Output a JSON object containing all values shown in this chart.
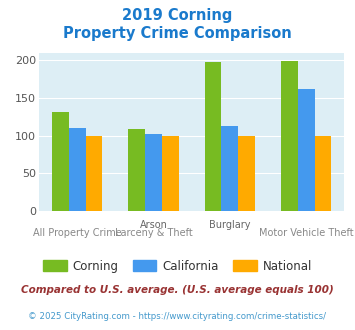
{
  "title_line1": "2019 Corning",
  "title_line2": "Property Crime Comparison",
  "groups": [
    {
      "label": "All Property Crime",
      "corning": 131,
      "california": 110,
      "national": 100
    },
    {
      "label": "Arson\nLarceny & Theft",
      "corning": 109,
      "california": 103,
      "national": 100
    },
    {
      "label": "Burglary",
      "corning": 198,
      "california": 113,
      "national": 100
    },
    {
      "label": "Motor Vehicle Theft",
      "corning": 199,
      "california": 162,
      "national": 100
    }
  ],
  "top_labels": [
    "",
    "Arson",
    "Burglary",
    ""
  ],
  "bottom_labels": [
    "All Property Crime",
    "Larceny & Theft",
    "",
    "Motor Vehicle Theft"
  ],
  "color_corning": "#77bb22",
  "color_california": "#4499ee",
  "color_national": "#ffaa00",
  "bg_color": "#ddeef5",
  "title_color": "#1a7acc",
  "ylim": [
    0,
    210
  ],
  "yticks": [
    0,
    50,
    100,
    150,
    200
  ],
  "legend_labels": [
    "Corning",
    "California",
    "National"
  ],
  "footnote1": "Compared to U.S. average. (U.S. average equals 100)",
  "footnote2": "© 2025 CityRating.com - https://www.cityrating.com/crime-statistics/",
  "footnote1_color": "#993333",
  "footnote2_color": "#4499cc"
}
